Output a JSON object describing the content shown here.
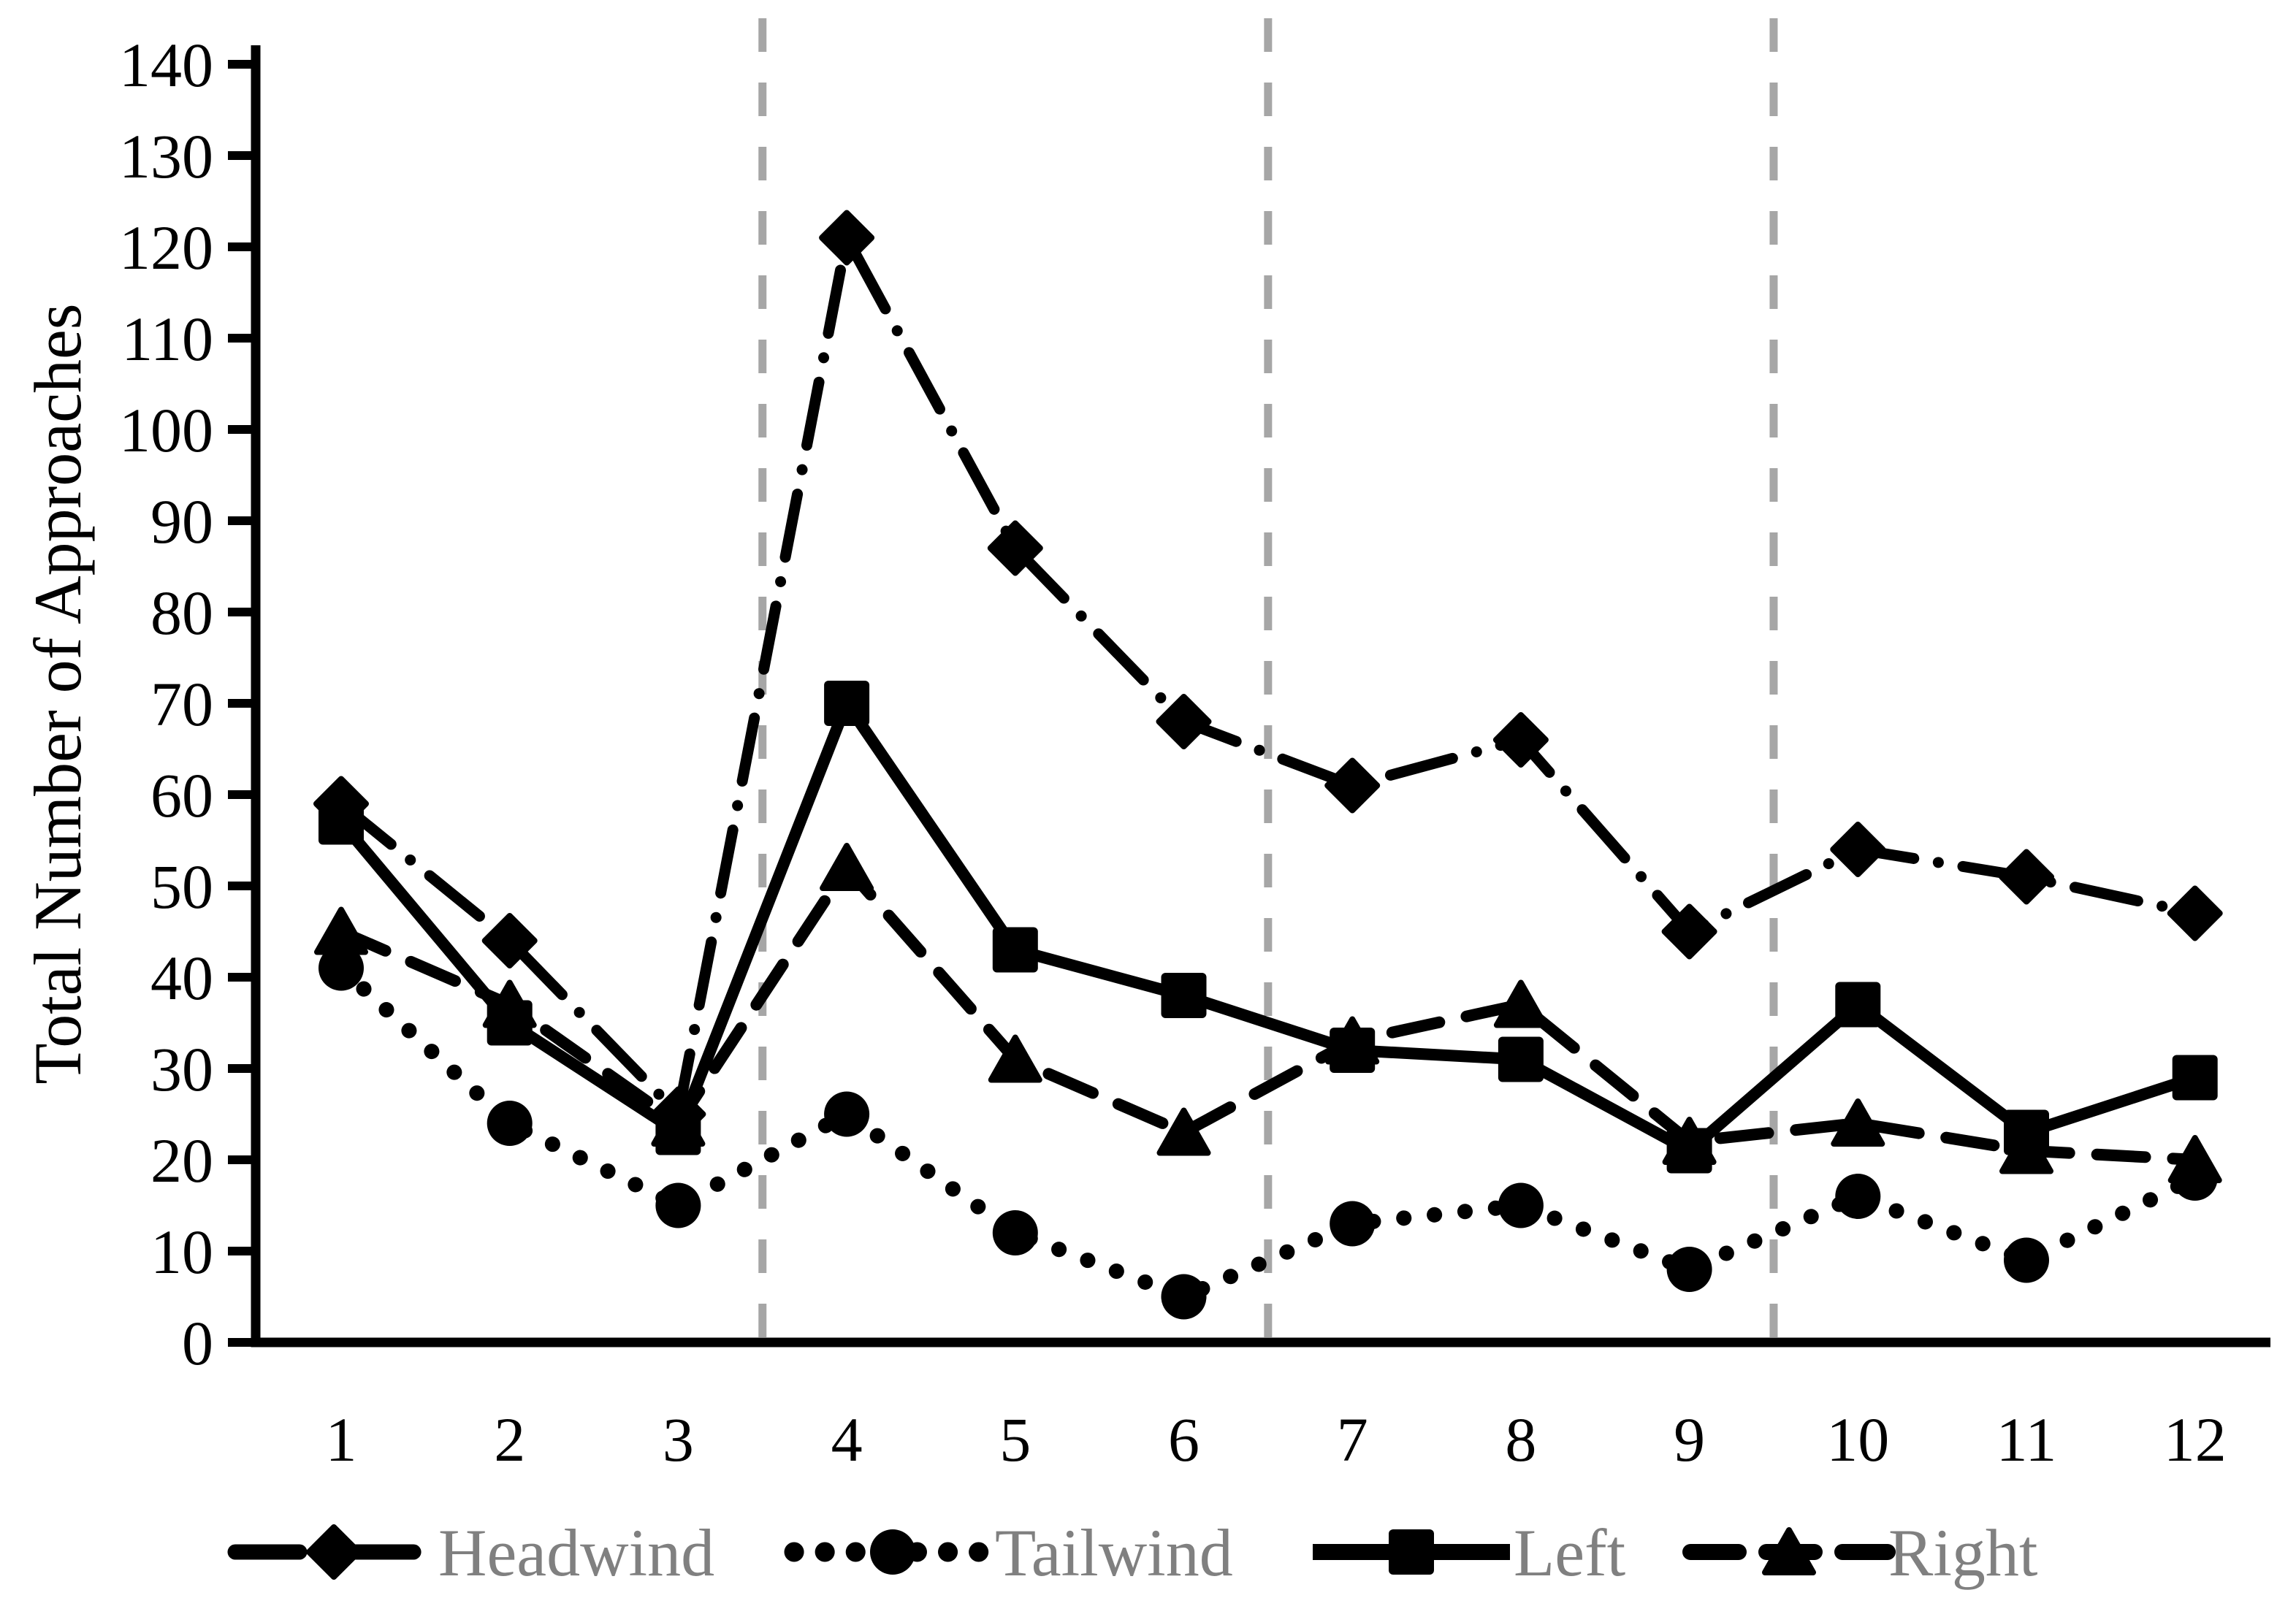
{
  "chart_data": {
    "type": "line",
    "title": "",
    "xlabel": "",
    "ylabel": "Total Number of Approaches",
    "x": [
      1,
      2,
      3,
      4,
      5,
      6,
      7,
      8,
      9,
      10,
      11,
      12
    ],
    "ylim": [
      0,
      140
    ],
    "yticks": [
      0,
      10,
      20,
      30,
      40,
      50,
      60,
      70,
      80,
      90,
      100,
      110,
      120,
      130,
      140
    ],
    "grid": "off",
    "separators_x": [
      3.5,
      6.5,
      9.5
    ],
    "legend_position": "bottom",
    "series": [
      {
        "name": "Headwind",
        "marker": "diamond",
        "line_style": "dash-dot",
        "values": [
          59,
          44,
          25,
          121,
          87,
          68,
          61,
          66,
          45,
          54,
          51,
          47
        ]
      },
      {
        "name": "Tailwind",
        "marker": "circle",
        "line_style": "dotted",
        "values": [
          41,
          24,
          15,
          25,
          12,
          5,
          13,
          15,
          8,
          16,
          9,
          18
        ]
      },
      {
        "name": "Left",
        "marker": "square",
        "line_style": "solid",
        "values": [
          57,
          35,
          23,
          70,
          43,
          38,
          32,
          31,
          21,
          37,
          23,
          29
        ]
      },
      {
        "name": "Right",
        "marker": "triangle",
        "line_style": "dashed",
        "values": [
          45,
          37,
          24,
          52,
          31,
          23,
          33,
          37,
          22,
          24,
          21,
          20
        ]
      }
    ]
  },
  "colors": {
    "background": "#ffffff",
    "series": "#000000",
    "axis": "#000000",
    "tick_label": "#000000",
    "separator": "#a6a6a6",
    "legend_text": "#808080"
  }
}
